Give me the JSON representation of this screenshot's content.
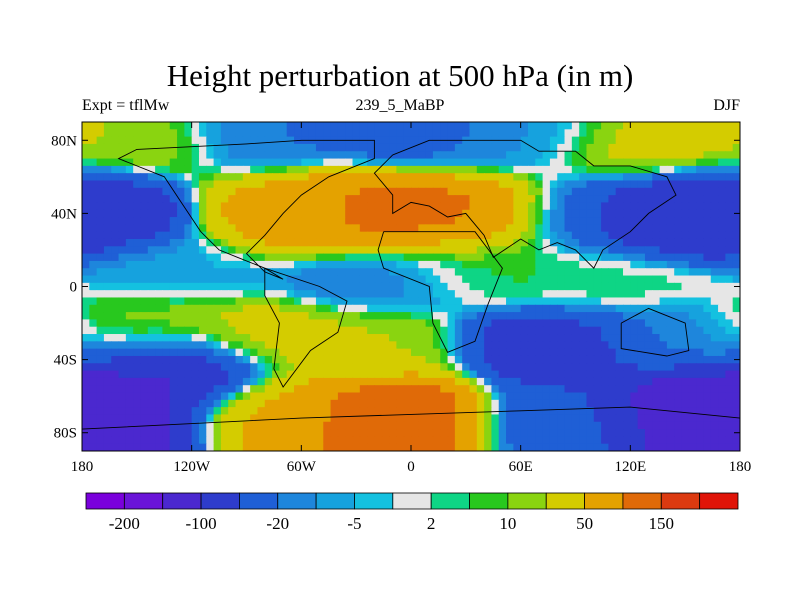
{
  "title": "Height perturbation at 500 hPa (in m)",
  "subtitle_left": "Expt = tflMw",
  "subtitle_center": "239_5_MaBP",
  "subtitle_right": "DJF",
  "chart_data": {
    "type": "heatmap",
    "title": "Height perturbation at 500 hPa (in m)",
    "x_ticks": [
      "180",
      "120W",
      "60W",
      "0",
      "60E",
      "120E",
      "180"
    ],
    "x_tick_values": [
      -180,
      -120,
      -60,
      0,
      60,
      120,
      180
    ],
    "y_ticks": [
      "80N",
      "40N",
      "0",
      "40S",
      "80S"
    ],
    "y_tick_values": [
      80,
      40,
      0,
      -40,
      -80
    ],
    "xlim": [
      -180,
      180
    ],
    "ylim": [
      -90,
      90
    ],
    "colorbar": {
      "labels": [
        "-200",
        "-100",
        "-20",
        "-5",
        "2",
        "10",
        "50",
        "150"
      ],
      "levels": [
        -200,
        -150,
        -100,
        -50,
        -20,
        -10,
        -5,
        -2,
        2,
        5,
        10,
        20,
        50,
        100,
        150,
        200
      ],
      "colors": [
        "#7a00dc",
        "#6a14d8",
        "#4b28cf",
        "#2e3ccc",
        "#1f5fd6",
        "#1e86dc",
        "#16a2de",
        "#14c1e0",
        "#e6e6e6",
        "#0ed585",
        "#28c81e",
        "#8ad410",
        "#d4cc00",
        "#e4a200",
        "#e06a08",
        "#dc3a10",
        "#e01408"
      ]
    },
    "blobs": [
      {
        "x": -30,
        "y": 42,
        "value": 120
      },
      {
        "x": 20,
        "y": 42,
        "value": 110
      },
      {
        "x": -70,
        "y": 42,
        "value": 60
      },
      {
        "x": -175,
        "y": 42,
        "value": -90
      },
      {
        "x": 175,
        "y": 42,
        "value": -70
      },
      {
        "x": 140,
        "y": 40,
        "value": -130
      },
      {
        "x": 95,
        "y": 40,
        "value": -15
      },
      {
        "x": -150,
        "y": 75,
        "value": 20
      },
      {
        "x": -80,
        "y": 78,
        "value": -20
      },
      {
        "x": 0,
        "y": 80,
        "value": -30
      },
      {
        "x": 60,
        "y": 78,
        "value": -10
      },
      {
        "x": 130,
        "y": 72,
        "value": 30
      },
      {
        "x": -130,
        "y": 10,
        "value": -6
      },
      {
        "x": -20,
        "y": 5,
        "value": -15
      },
      {
        "x": 40,
        "y": 10,
        "value": 6
      },
      {
        "x": 110,
        "y": 5,
        "value": 4
      },
      {
        "x": -150,
        "y": -25,
        "value": 15
      },
      {
        "x": -80,
        "y": -30,
        "value": 30
      },
      {
        "x": -20,
        "y": -35,
        "value": 20
      },
      {
        "x": 80,
        "y": -35,
        "value": -70
      },
      {
        "x": 150,
        "y": -30,
        "value": -15
      },
      {
        "x": -130,
        "y": -48,
        "value": -110
      },
      {
        "x": -10,
        "y": -70,
        "value": 150
      },
      {
        "x": -75,
        "y": -68,
        "value": 60
      },
      {
        "x": 165,
        "y": -65,
        "value": -160
      },
      {
        "x": -165,
        "y": -70,
        "value": -130
      },
      {
        "x": 80,
        "y": -70,
        "value": -40
      }
    ],
    "grid": false
  }
}
